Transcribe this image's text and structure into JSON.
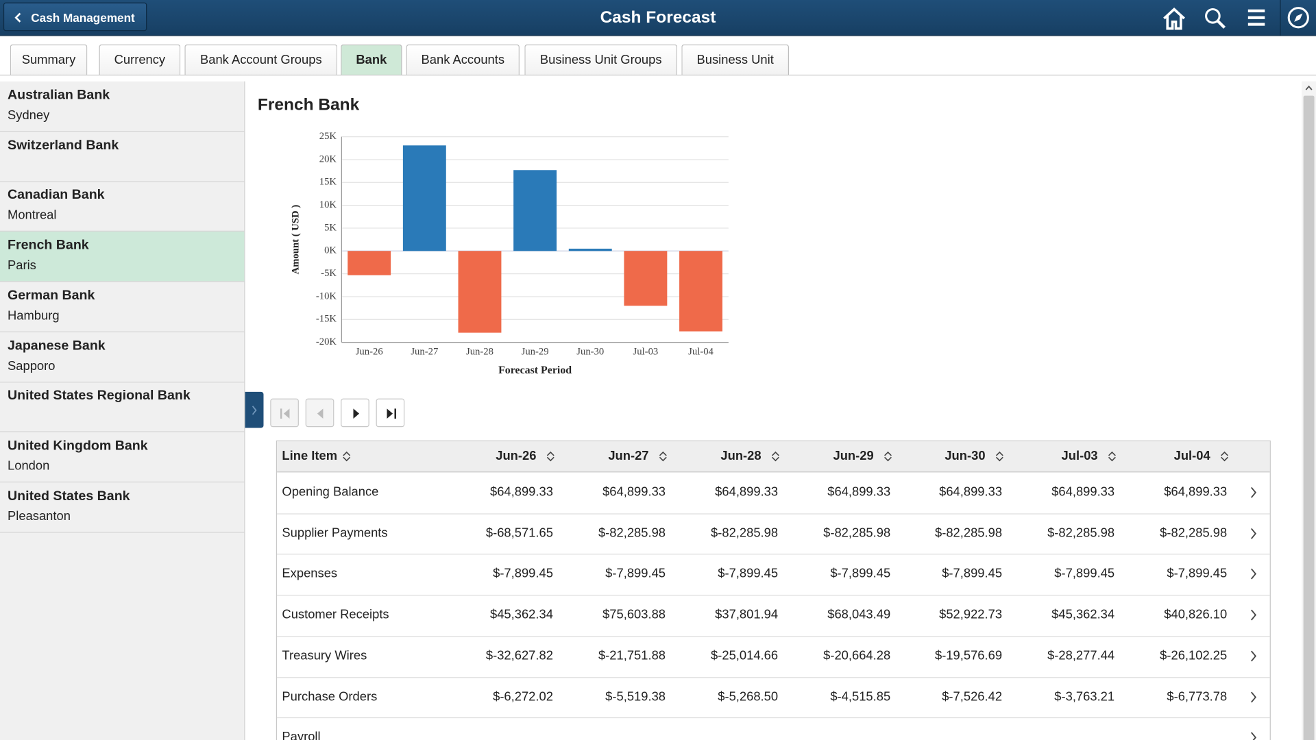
{
  "header": {
    "back": "Cash Management",
    "title": "Cash Forecast"
  },
  "tabs": [
    "Summary",
    "Currency",
    "Bank Account Groups",
    "Bank",
    "Bank Accounts",
    "Business Unit Groups",
    "Business Unit"
  ],
  "banks": [
    {
      "name": "Australian Bank",
      "city": "Sydney"
    },
    {
      "name": "Switzerland Bank"
    },
    {
      "name": "Canadian Bank",
      "city": "Montreal"
    },
    {
      "name": "French Bank",
      "city": "Paris"
    },
    {
      "name": "German Bank",
      "city": "Hamburg"
    },
    {
      "name": "Japanese Bank",
      "city": "Sapporo"
    },
    {
      "name": "United States Regional Bank"
    },
    {
      "name": "United Kingdom Bank",
      "city": "London"
    },
    {
      "name": "United States Bank",
      "city": "Pleasanton"
    }
  ],
  "chart_data": {
    "type": "bar",
    "title": "French Bank",
    "x_label": "Forecast Period",
    "y_label": "Amount ( USD )",
    "categories": [
      "Jun-26",
      "Jun-27",
      "Jun-28",
      "Jun-29",
      "Jun-30",
      "Jul-03",
      "Jul-04"
    ],
    "values": [
      -5300,
      23100,
      -17900,
      17700,
      500,
      -12000,
      -17600
    ],
    "colors": {
      "positive": "#2a7ab8",
      "negative": "#ef6a4a"
    },
    "ylim": [
      -20000,
      25000
    ],
    "yticks": [
      {
        "value": -20000,
        "label": "-20K"
      },
      {
        "value": -15000,
        "label": "-15K"
      },
      {
        "value": -10000,
        "label": "-10K"
      },
      {
        "value": -5000,
        "label": "-5K"
      },
      {
        "value": 0,
        "label": "0K"
      },
      {
        "value": 5000,
        "label": "5K"
      },
      {
        "value": 10000,
        "label": "10K"
      },
      {
        "value": 15000,
        "label": "15K"
      },
      {
        "value": 20000,
        "label": "20K"
      },
      {
        "value": 25000,
        "label": "25K"
      }
    ],
    "grid": true
  },
  "table": {
    "columns": [
      "Line Item",
      "Jun-26",
      "Jun-27",
      "Jun-28",
      "Jun-29",
      "Jun-30",
      "Jul-03",
      "Jul-04"
    ],
    "rows": [
      [
        "Opening Balance",
        "$64,899.33",
        "$64,899.33",
        "$64,899.33",
        "$64,899.33",
        "$64,899.33",
        "$64,899.33",
        "$64,899.33"
      ],
      [
        "Supplier Payments",
        "$-68,571.65",
        "$-82,285.98",
        "$-82,285.98",
        "$-82,285.98",
        "$-82,285.98",
        "$-82,285.98",
        "$-82,285.98"
      ],
      [
        "Expenses",
        "$-7,899.45",
        "$-7,899.45",
        "$-7,899.45",
        "$-7,899.45",
        "$-7,899.45",
        "$-7,899.45",
        "$-7,899.45"
      ],
      [
        "Customer Receipts",
        "$45,362.34",
        "$75,603.88",
        "$37,801.94",
        "$68,043.49",
        "$52,922.73",
        "$45,362.34",
        "$40,826.10"
      ],
      [
        "Treasury Wires",
        "$-32,627.82",
        "$-21,751.88",
        "$-25,014.66",
        "$-20,664.28",
        "$-19,576.69",
        "$-28,277.44",
        "$-26,102.25"
      ],
      [
        "Purchase Orders",
        "$-6,272.02",
        "$-5,519.38",
        "$-5,268.50",
        "$-4,515.85",
        "$-7,526.42",
        "$-3,763.21",
        "$-6,773.78"
      ],
      [
        "Payroll"
      ]
    ]
  }
}
